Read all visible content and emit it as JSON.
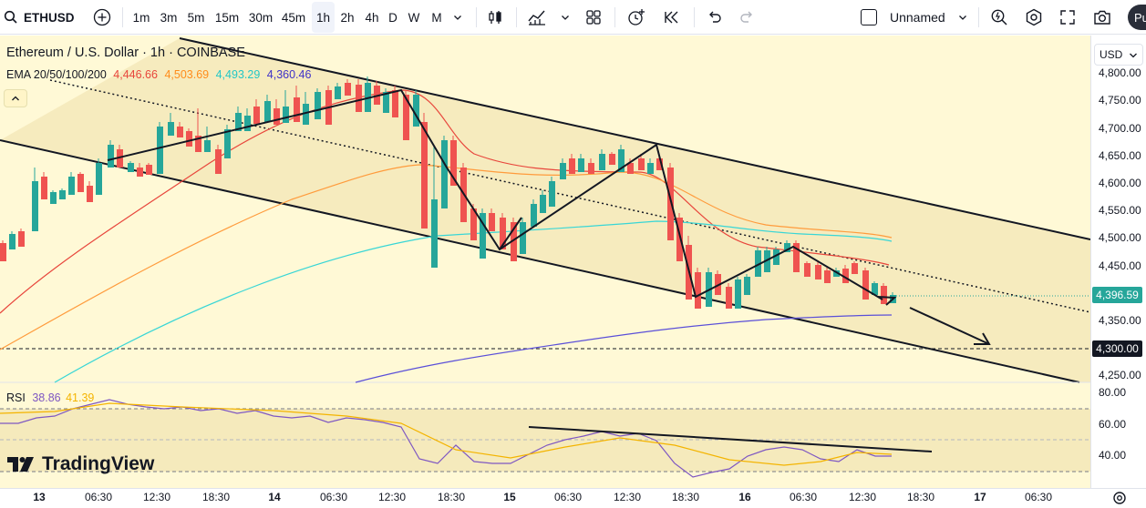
{
  "toolbar": {
    "symbol": "ETHUSD",
    "timeframes": [
      "1m",
      "3m",
      "5m",
      "15m",
      "30m",
      "45m",
      "1h",
      "2h",
      "4h",
      "D",
      "W",
      "M"
    ],
    "active_timeframe": "1h",
    "layout_name": "Unnamed",
    "publish_label": "Pu"
  },
  "legend": {
    "title": "Ethereum / U.S. Dollar · 1h · COINBASE",
    "ema_label": "EMA 20/50/100/200",
    "ema_values": [
      "4,446.66",
      "4,503.69",
      "4,493.29",
      "4,360.46"
    ],
    "ema_colors": [
      "#e8463c",
      "#ff9b3c",
      "#38d6d6",
      "#5a4fd8"
    ],
    "rsi_label": "RSI",
    "rsi_values": [
      "38.86",
      "41.39"
    ],
    "rsi_colors": [
      "#7e57c2",
      "#f4b400"
    ]
  },
  "price_axis": {
    "currency": "USD",
    "ticks": [
      "4,800.00",
      "4,750.00",
      "4,700.00",
      "4,650.00",
      "4,600.00",
      "4,550.00",
      "4,500.00",
      "4,450.00",
      "4,350.00",
      "4,250.00"
    ],
    "current_price": "4,396.59",
    "current_price_color": "#26a69a",
    "horizontal_level": "4,300.00",
    "level_color": "#131722"
  },
  "rsi_axis": {
    "ticks": [
      "80.00",
      "60.00",
      "40.00"
    ]
  },
  "time_axis": {
    "labels": [
      {
        "text": "13",
        "day": true
      },
      {
        "text": "06:30",
        "day": false
      },
      {
        "text": "12:30",
        "day": false
      },
      {
        "text": "18:30",
        "day": false
      },
      {
        "text": "14",
        "day": true
      },
      {
        "text": "06:30",
        "day": false
      },
      {
        "text": "12:30",
        "day": false
      },
      {
        "text": "18:30",
        "day": false
      },
      {
        "text": "15",
        "day": true
      },
      {
        "text": "06:30",
        "day": false
      },
      {
        "text": "12:30",
        "day": false
      },
      {
        "text": "18:30",
        "day": false
      },
      {
        "text": "16",
        "day": true
      },
      {
        "text": "06:30",
        "day": false
      },
      {
        "text": "12:30",
        "day": false
      },
      {
        "text": "18:30",
        "day": false
      },
      {
        "text": "17",
        "day": true
      },
      {
        "text": "06:30",
        "day": false
      }
    ]
  },
  "branding": {
    "logo_text": "TradingView"
  },
  "colors": {
    "chart_bg": "#fff9d6",
    "channel_fill": "#f4e8b8",
    "bull": "#26a69a",
    "bear": "#ef5350"
  }
}
